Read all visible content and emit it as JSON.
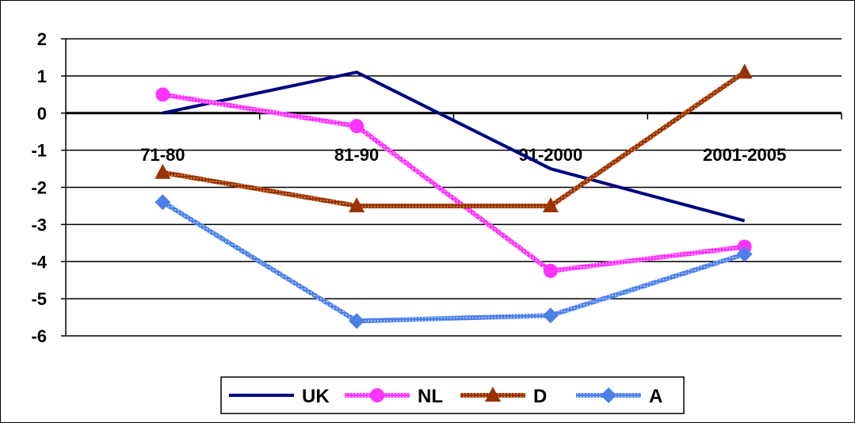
{
  "chart_data": {
    "type": "line",
    "categories": [
      "71-80",
      "81-90",
      "91-2000",
      "2001-2005"
    ],
    "ylim": [
      -6,
      2
    ],
    "yticks": [
      2,
      1,
      0,
      -1,
      -2,
      -3,
      -4,
      -5,
      -6
    ],
    "grid": true,
    "legend_position": "bottom",
    "series": [
      {
        "name": "UK",
        "values": [
          0.0,
          1.1,
          -1.5,
          -2.9
        ],
        "color": "#000080",
        "marker": "none",
        "style": "solid"
      },
      {
        "name": "NL",
        "values": [
          0.5,
          -0.35,
          -4.25,
          -3.6
        ],
        "color": "#ff33ff",
        "marker": "circle",
        "style": "textured"
      },
      {
        "name": "D",
        "values": [
          -1.6,
          -2.5,
          -2.5,
          1.1
        ],
        "color": "#993300",
        "marker": "triangle",
        "style": "textured"
      },
      {
        "name": "A",
        "values": [
          -2.4,
          -5.6,
          -5.45,
          -3.8
        ],
        "color": "#4d80e6",
        "marker": "diamond",
        "style": "textured"
      }
    ]
  }
}
